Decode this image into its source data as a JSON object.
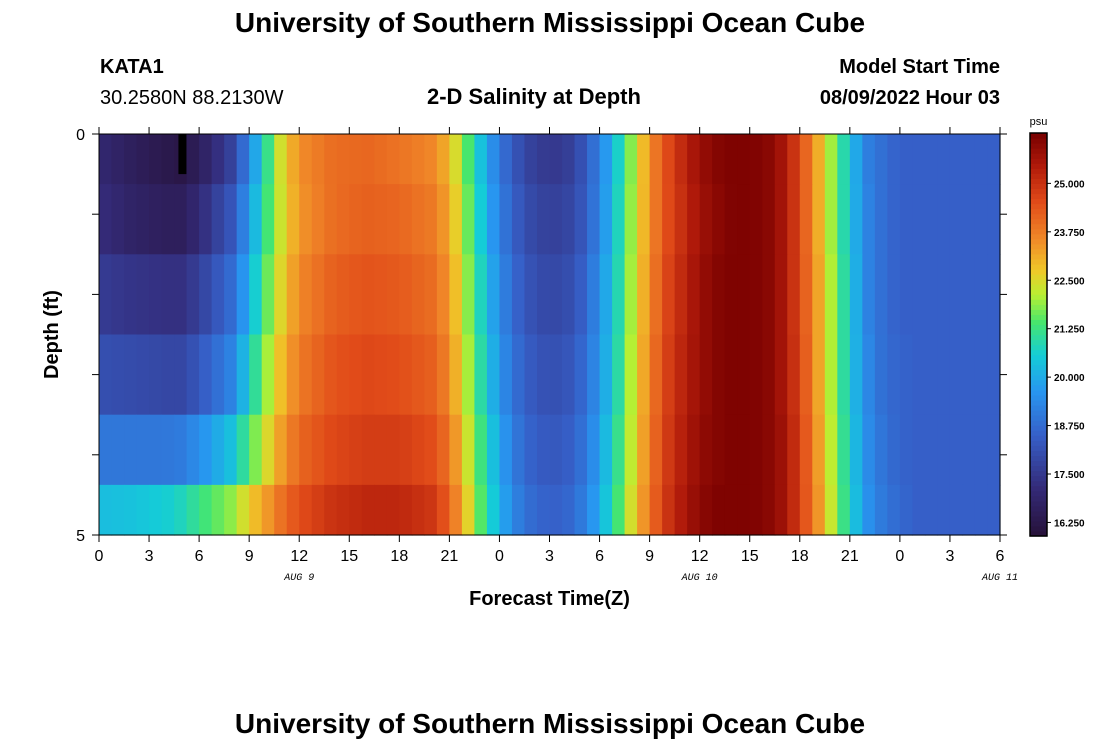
{
  "header": {
    "title": "University of Southern Mississippi Ocean Cube",
    "station": "KATA1",
    "location": "30.2580N  88.2130W",
    "subtitle": "2-D Salinity at Depth",
    "model_start_label": "Model Start Time",
    "model_start_value": "08/09/2022 Hour 03"
  },
  "footer": {
    "title": "University of Southern Mississippi Ocean Cube"
  },
  "chart_data": {
    "type": "heatmap",
    "title": "2-D Salinity at Depth",
    "xlabel": "Forecast Time(Z)",
    "ylabel": "Depth (ft)",
    "x_tick_labels": [
      "0",
      "3",
      "6",
      "9",
      "12",
      "15",
      "18",
      "21",
      "0",
      "3",
      "6",
      "9",
      "12",
      "15",
      "18",
      "21",
      "0",
      "3",
      "6"
    ],
    "x_date_labels": [
      {
        "text": "AUG 9",
        "hour": 12
      },
      {
        "text": "AUG 10",
        "hour": 36
      },
      {
        "text": "AUG 11",
        "hour": 54
      }
    ],
    "y_tick_labels": [
      "0",
      "5"
    ],
    "ylim": [
      0,
      5
    ],
    "xlim_hours": [
      0,
      54
    ],
    "depth_layers_ft": [
      0.25,
      1.0,
      2.0,
      3.0,
      4.0,
      4.75
    ],
    "colorbar": {
      "unit": "psu",
      "min": 15.9,
      "max": 26.3,
      "tick_values": [
        16.25,
        17.5,
        18.75,
        20.0,
        21.25,
        22.5,
        23.75,
        25.0
      ],
      "tick_labels": [
        "16.250",
        "17.500",
        "18.750",
        "20.000",
        "21.250",
        "22.500",
        "23.750",
        "25.000"
      ]
    },
    "salinity_keyframes_hours": [
      0,
      2,
      4,
      5,
      6,
      8,
      9,
      10,
      11,
      12,
      14,
      16,
      18,
      20,
      21,
      22,
      23,
      24,
      25,
      26,
      27,
      28,
      29,
      30,
      31,
      32,
      33,
      34,
      35,
      36,
      37,
      38,
      39,
      40,
      41,
      42,
      43,
      44,
      45,
      46,
      47,
      48,
      49,
      50,
      51,
      52,
      53,
      54
    ],
    "salinity_by_layer_psu": [
      [
        17.0,
        16.6,
        16.3,
        16.2,
        16.6,
        17.8,
        19.3,
        21.0,
        22.6,
        23.5,
        24.0,
        24.1,
        23.9,
        23.6,
        23.0,
        21.6,
        20.2,
        19.0,
        18.2,
        17.7,
        17.5,
        17.6,
        18.2,
        19.2,
        20.5,
        22.0,
        23.5,
        24.5,
        25.2,
        25.8,
        26.1,
        26.2,
        26.2,
        26.1,
        25.6,
        24.6,
        23.3,
        21.8,
        20.4,
        19.2,
        18.8,
        18.5,
        18.5,
        18.5,
        18.5,
        18.5,
        18.5,
        18.5
      ],
      [
        17.2,
        16.8,
        16.6,
        16.6,
        17.1,
        18.3,
        19.7,
        21.2,
        22.5,
        23.4,
        24.0,
        24.2,
        24.1,
        23.8,
        23.2,
        21.8,
        20.4,
        19.2,
        18.4,
        17.9,
        17.7,
        17.8,
        18.3,
        19.3,
        20.6,
        22.1,
        23.5,
        24.5,
        25.1,
        25.7,
        26.0,
        26.2,
        26.2,
        26.1,
        25.6,
        24.6,
        23.3,
        21.8,
        20.4,
        19.3,
        18.8,
        18.5,
        18.5,
        18.5,
        18.5,
        18.5,
        18.5,
        18.5
      ],
      [
        17.6,
        17.4,
        17.3,
        17.3,
        17.7,
        18.8,
        20.1,
        21.5,
        22.7,
        23.6,
        24.2,
        24.4,
        24.3,
        24.0,
        23.4,
        22.0,
        20.6,
        19.4,
        18.6,
        18.1,
        17.9,
        18.0,
        18.5,
        19.5,
        20.7,
        22.2,
        23.6,
        24.6,
        25.2,
        25.8,
        26.1,
        26.2,
        26.2,
        26.1,
        25.6,
        24.6,
        23.4,
        21.9,
        20.5,
        19.3,
        18.8,
        18.5,
        18.5,
        18.5,
        18.5,
        18.5,
        18.5,
        18.5
      ],
      [
        18.1,
        18.0,
        17.9,
        17.9,
        18.3,
        19.3,
        20.6,
        21.9,
        23.0,
        23.8,
        24.4,
        24.6,
        24.5,
        24.2,
        23.6,
        22.2,
        20.8,
        19.6,
        18.8,
        18.3,
        18.1,
        18.2,
        18.7,
        19.6,
        20.8,
        22.3,
        23.7,
        24.7,
        25.3,
        25.8,
        26.1,
        26.2,
        26.2,
        26.1,
        25.6,
        24.7,
        23.4,
        21.9,
        20.5,
        19.4,
        18.8,
        18.6,
        18.5,
        18.5,
        18.5,
        18.5,
        18.5,
        18.5
      ],
      [
        19.0,
        19.0,
        19.0,
        19.1,
        19.5,
        20.4,
        21.4,
        22.4,
        23.4,
        24.1,
        24.6,
        24.8,
        24.8,
        24.5,
        23.9,
        22.5,
        21.1,
        19.9,
        19.0,
        18.5,
        18.3,
        18.4,
        18.9,
        19.8,
        21.0,
        22.4,
        23.8,
        24.8,
        25.4,
        25.9,
        26.1,
        26.2,
        26.2,
        26.1,
        25.7,
        24.8,
        23.5,
        22.0,
        20.6,
        19.5,
        18.9,
        18.6,
        18.5,
        18.5,
        18.5,
        18.5,
        18.5,
        18.5
      ],
      [
        20.3,
        20.4,
        20.6,
        20.8,
        21.2,
        21.9,
        22.7,
        23.3,
        24.0,
        24.5,
        25.0,
        25.2,
        25.2,
        24.9,
        24.2,
        22.8,
        21.3,
        20.1,
        19.2,
        18.7,
        18.5,
        18.6,
        19.1,
        20.0,
        21.2,
        22.6,
        23.9,
        24.9,
        25.5,
        26.0,
        26.2,
        26.2,
        26.2,
        26.1,
        25.7,
        24.8,
        23.6,
        22.1,
        20.7,
        19.6,
        19.0,
        18.7,
        18.5,
        18.5,
        18.5,
        18.5,
        18.5,
        18.5
      ]
    ],
    "marker": {
      "hour": 5,
      "depth_from_ft": 0,
      "depth_to_ft": 0.5,
      "color": "#000000"
    }
  }
}
